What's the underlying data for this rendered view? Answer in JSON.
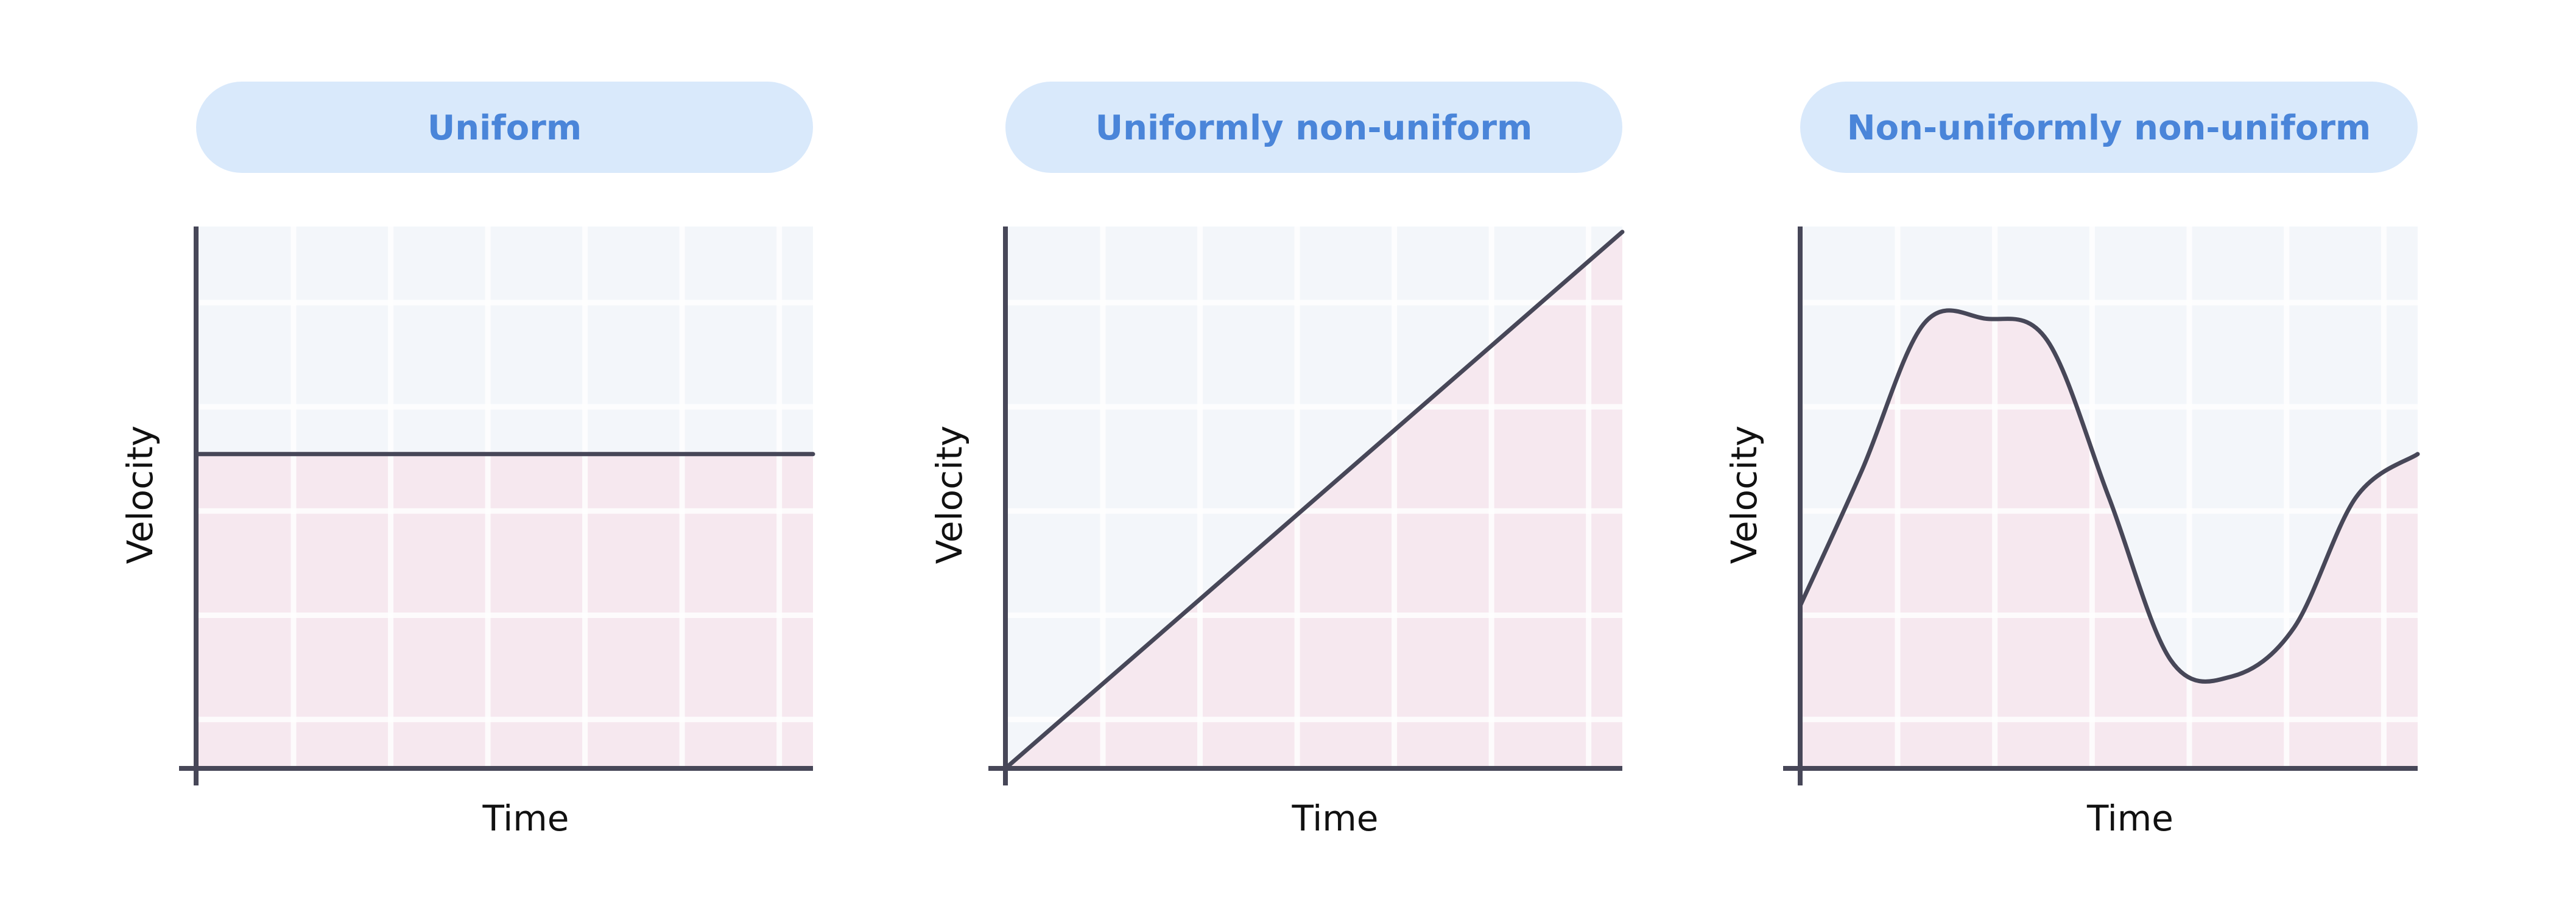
{
  "colors": {
    "pill_fill": "#d9e9fb",
    "title_text": "#4a85d9",
    "plot_bg": "#f3f6fa",
    "grid_line": "#ffffff",
    "area_fill": "#f6e8ef",
    "curve": "#474758",
    "axis": "#474758",
    "label_text": "#111111"
  },
  "chart_data": [
    {
      "type": "area",
      "title": "Uniform",
      "xlabel": "Time",
      "ylabel": "Velocity",
      "xlim": [
        0,
        1
      ],
      "ylim": [
        0,
        1
      ],
      "grid": true,
      "x": [
        0,
        1
      ],
      "values": [
        0.58,
        0.58
      ]
    },
    {
      "type": "area",
      "title": "Uniformly non-uniform",
      "xlabel": "Time",
      "ylabel": "Velocity",
      "xlim": [
        0,
        1
      ],
      "ylim": [
        0,
        1
      ],
      "grid": true,
      "x": [
        0,
        1
      ],
      "values": [
        0,
        0.99
      ]
    },
    {
      "type": "area",
      "title": "Non-uniformly non-uniform",
      "xlabel": "Time",
      "ylabel": "Velocity",
      "xlim": [
        0,
        1
      ],
      "ylim": [
        0,
        1
      ],
      "grid": true,
      "x": [
        0,
        0.1,
        0.2,
        0.3,
        0.4,
        0.5,
        0.6,
        0.7,
        0.8,
        0.9,
        1
      ],
      "values": [
        0.3,
        0.55,
        0.82,
        0.83,
        0.79,
        0.5,
        0.2,
        0.17,
        0.26,
        0.5,
        0.58
      ]
    }
  ]
}
